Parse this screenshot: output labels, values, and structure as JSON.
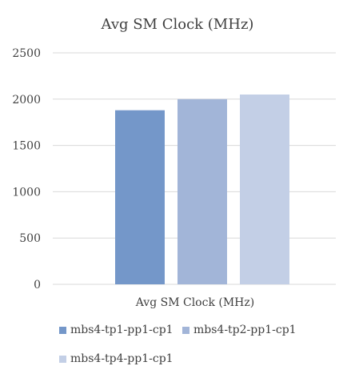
{
  "chart_data": {
    "type": "bar",
    "title": "Avg SM Clock (MHz)",
    "categories": [
      "Avg SM Clock (MHz)"
    ],
    "series": [
      {
        "name": "mbs4-tp1-pp1-cp1",
        "values": [
          1880
        ],
        "color": "#7497c9"
      },
      {
        "name": "mbs4-tp2-pp1-cp1",
        "values": [
          2000
        ],
        "color": "#a2b5d8"
      },
      {
        "name": "mbs4-tp4-pp1-cp1",
        "values": [
          2050
        ],
        "color": "#c3cfe6"
      }
    ],
    "ylim": [
      0,
      2500
    ],
    "yticks": [
      "0",
      "500",
      "1000",
      "1500",
      "2000",
      "2500"
    ],
    "grid": true,
    "legend_position": "bottom"
  }
}
